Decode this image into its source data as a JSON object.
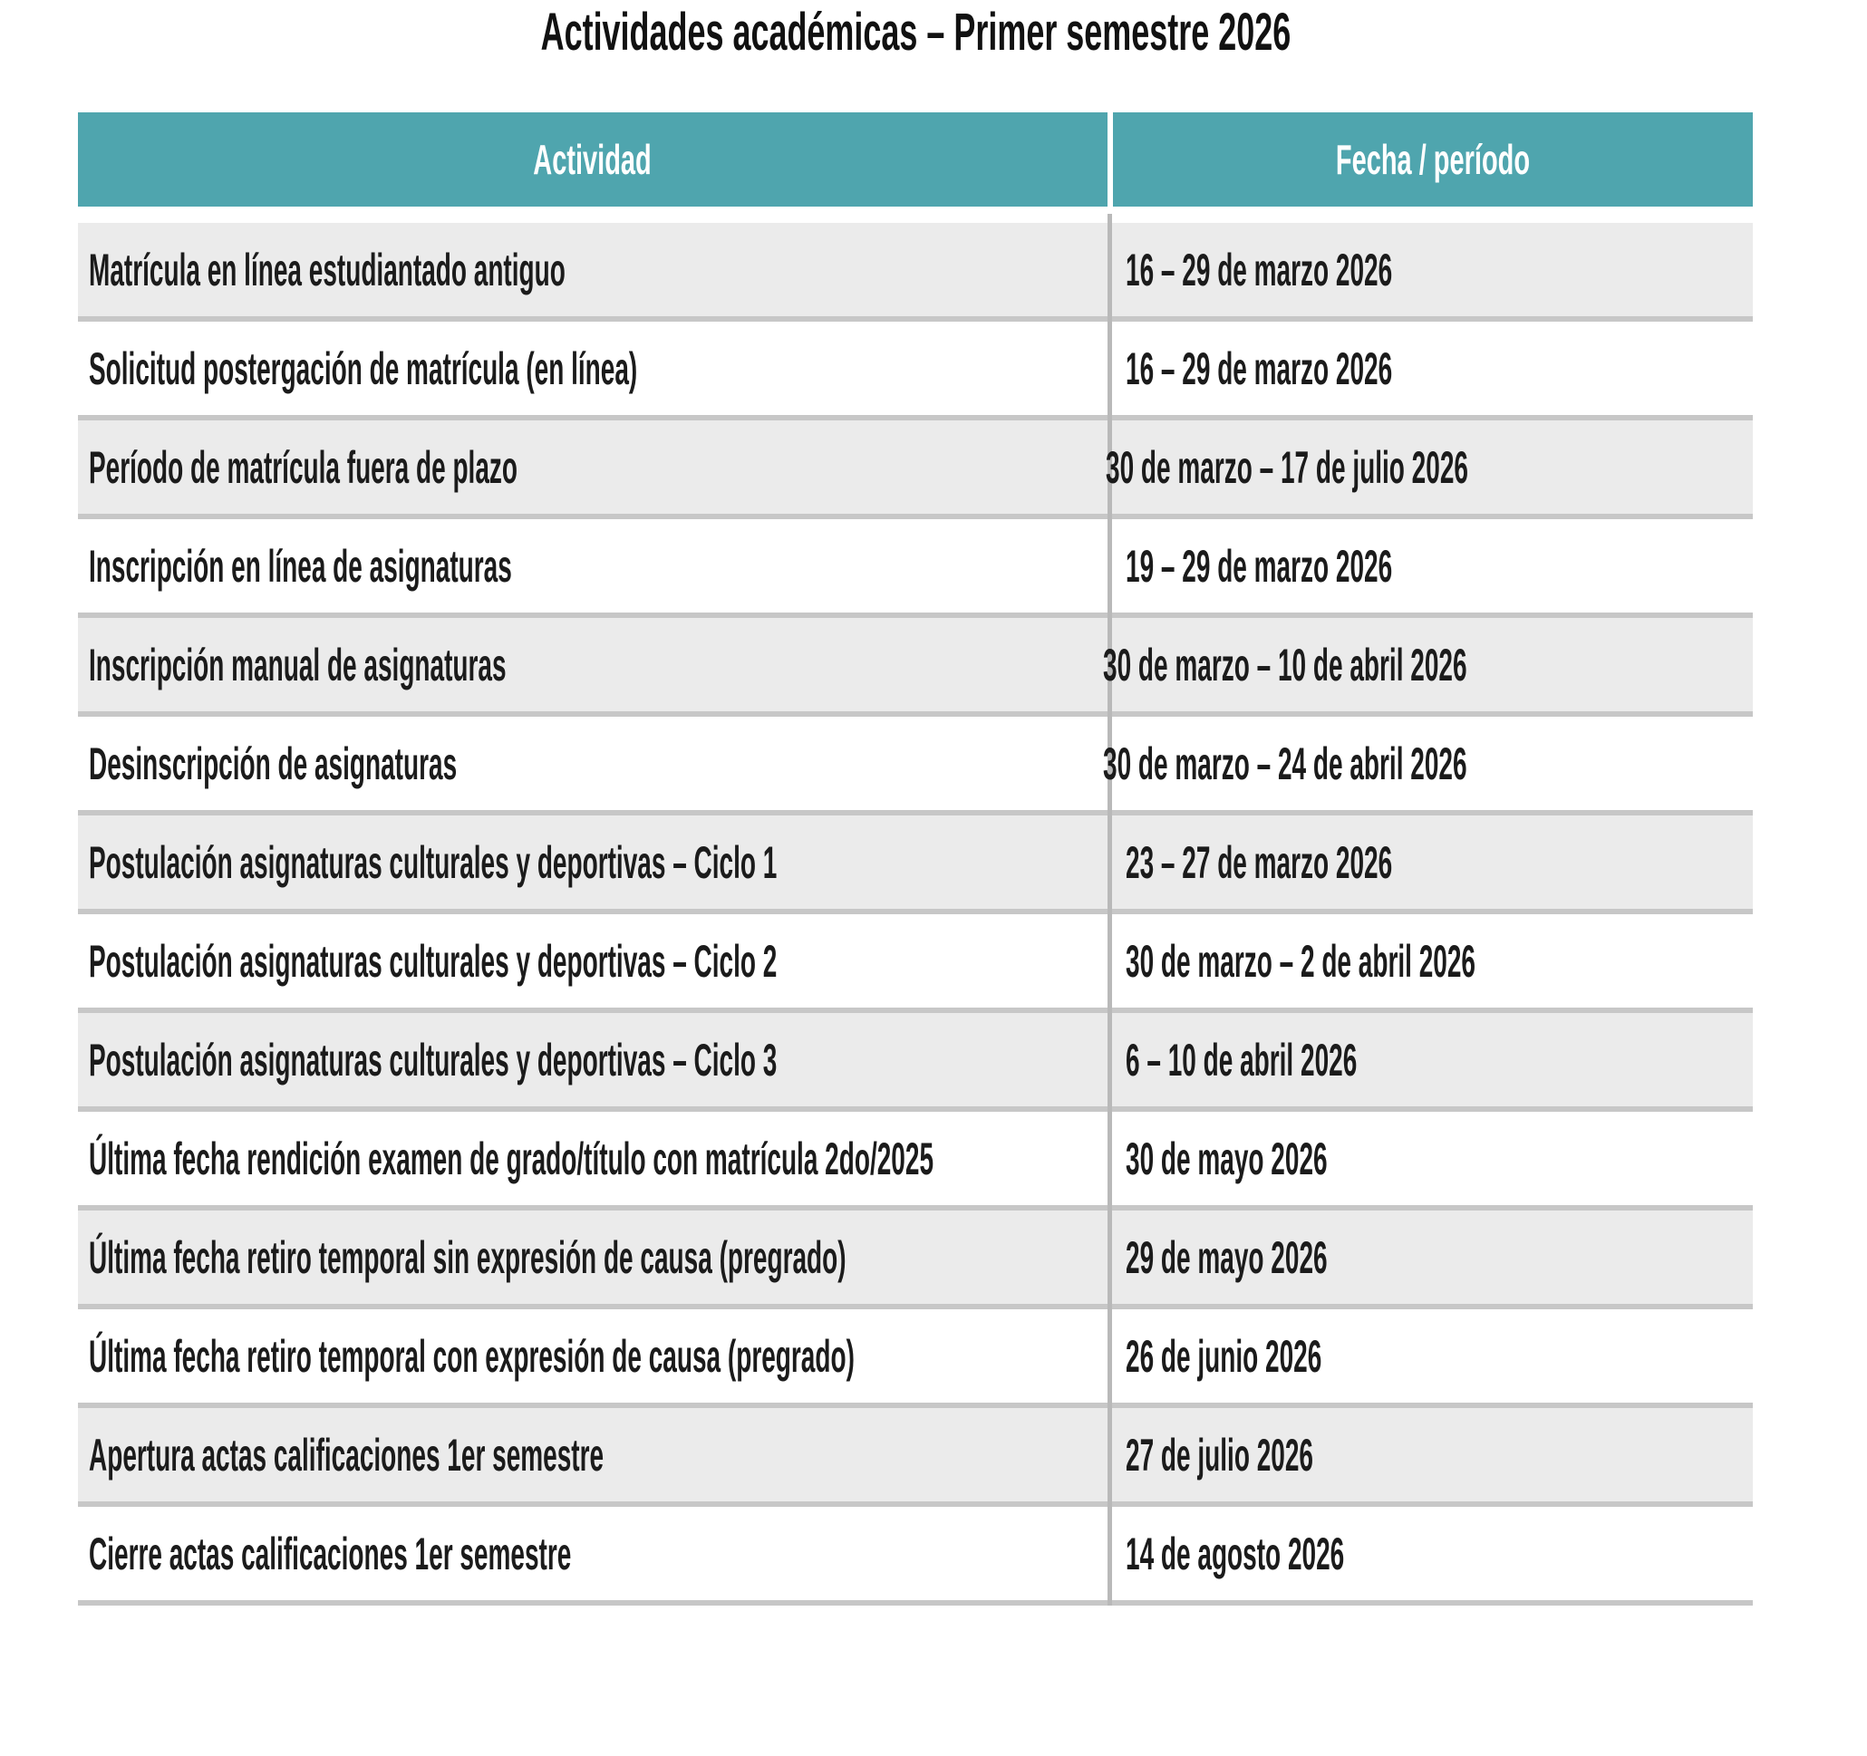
{
  "title": "Actividades académicas – Primer semestre 2026",
  "table": {
    "headers": {
      "actividad": "Actividad",
      "fecha": "Fecha / período"
    },
    "rows": [
      {
        "actividad": "Matrícula en línea estudiantado antiguo",
        "fecha": "16 – 29 de marzo 2026"
      },
      {
        "actividad": "Solicitud postergación de matrícula (en línea)",
        "fecha": "16 – 29 de marzo 2026"
      },
      {
        "actividad": "Período de matrícula fuera de plazo",
        "fecha": "30 de marzo – 17 de julio 2026"
      },
      {
        "actividad": "Inscripción en línea de asignaturas",
        "fecha": "19 – 29 de marzo 2026"
      },
      {
        "actividad": "Inscripción manual de asignaturas",
        "fecha": "30 de marzo – 10 de abril 2026"
      },
      {
        "actividad": "Desinscripción de asignaturas",
        "fecha": "30 de marzo – 24 de abril 2026"
      },
      {
        "actividad": "Postulación asignaturas culturales y deportivas – Ciclo 1",
        "fecha": "23 – 27 de marzo 2026"
      },
      {
        "actividad": "Postulación asignaturas culturales y deportivas – Ciclo 2",
        "fecha": "30 de marzo – 2 de abril 2026"
      },
      {
        "actividad": "Postulación asignaturas culturales y deportivas – Ciclo 3",
        "fecha": "6 – 10 de abril 2026"
      },
      {
        "actividad": "Última fecha rendición examen de grado/título con matrícula 2do/2025",
        "fecha": "30 de mayo 2026"
      },
      {
        "actividad": "Última fecha retiro temporal sin expresión de causa (pregrado)",
        "fecha": "29 de mayo 2026"
      },
      {
        "actividad": "Última fecha retiro temporal con expresión de causa (pregrado)",
        "fecha": "26 de junio 2026"
      },
      {
        "actividad": "Apertura actas calificaciones 1er semestre",
        "fecha": "27 de julio 2026"
      },
      {
        "actividad": "Cierre actas calificaciones 1er semestre",
        "fecha": "14 de agosto 2026"
      }
    ]
  },
  "colors": {
    "header_bg": "#4fa5ae",
    "header_text": "#ffffff",
    "row_alt_bg": "#ebebeb",
    "row_bg": "#ffffff",
    "row_border": "#c7c7c7",
    "column_divider": "#b9b9b9",
    "body_text": "#1b1b1b"
  }
}
